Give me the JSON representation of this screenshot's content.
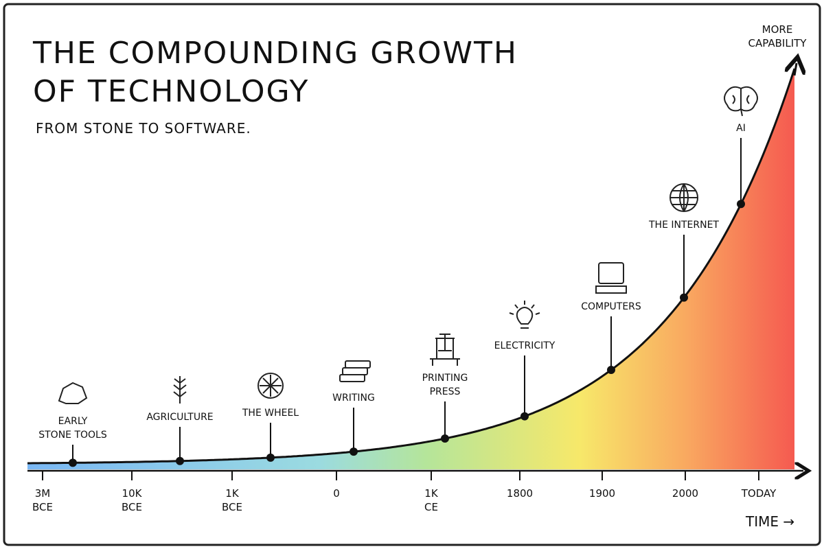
{
  "header": {
    "title_lines": [
      "THE COMPOUNDING GROWTH",
      "OF TECHNOLOGY"
    ],
    "subtitle": "FROM STONE TO SOFTWARE."
  },
  "y_axis_label": [
    "MORE",
    "CAPABILITY"
  ],
  "x_axis_label": "TIME →",
  "milestones": [
    {
      "label": [
        "EARLY",
        "STONE TOOLS"
      ]
    },
    {
      "label": [
        "AGRICULTURE"
      ]
    },
    {
      "label": [
        "THE WHEEL"
      ]
    },
    {
      "label": [
        "WRITING"
      ]
    },
    {
      "label": [
        "PRINTING",
        "PRESS"
      ]
    },
    {
      "label": [
        "ELECTRICITY"
      ]
    },
    {
      "label": [
        "COMPUTERS"
      ]
    },
    {
      "label": [
        "THE INTERNET"
      ]
    },
    {
      "label": [
        "AI"
      ]
    }
  ],
  "x_ticks": [
    {
      "label": [
        "3M",
        "BCE"
      ]
    },
    {
      "label": [
        "10K",
        "BCE"
      ]
    },
    {
      "label": [
        "1K",
        "BCE"
      ]
    },
    {
      "label": [
        "0"
      ]
    },
    {
      "label": [
        "1K",
        "CE"
      ]
    },
    {
      "label": [
        "1800"
      ]
    },
    {
      "label": [
        "1900"
      ]
    },
    {
      "label": [
        "2000"
      ]
    },
    {
      "label": [
        "TODAY"
      ]
    }
  ]
}
